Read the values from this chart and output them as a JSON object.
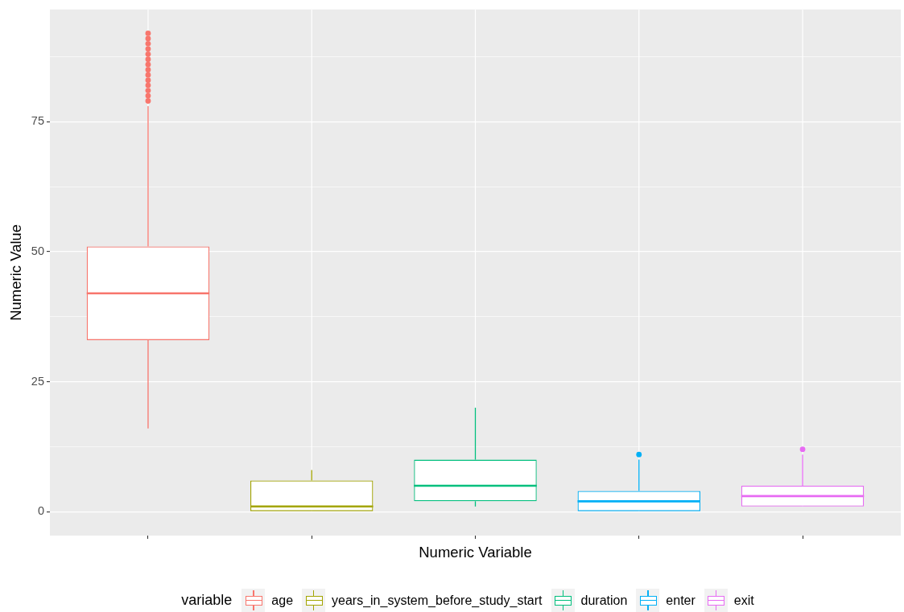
{
  "chart_data": {
    "type": "box",
    "xlabel": "Numeric Variable",
    "ylabel": "Numeric Value",
    "legend_title": "variable",
    "categories": [
      null,
      null,
      null,
      null,
      null
    ],
    "ylim": [
      -4.6,
      96.6
    ],
    "yticks": [
      0,
      {
        "value": 12.5,
        "label": null
      },
      25,
      {
        "value": 37.5,
        "label": null
      },
      50,
      {
        "value": 62.5,
        "label": null
      },
      75,
      {
        "value": 87.5,
        "label": null
      }
    ],
    "grid": true,
    "legend": "bottom",
    "tick_labels": "y",
    "series": [
      {
        "name": "age",
        "color": "#f8766d",
        "boxes": [
          {
            "low": 16,
            "q1": 33,
            "median": 42,
            "q3": 51,
            "high": 78,
            "outliers": [
              79,
              80,
              81,
              82,
              83,
              84,
              85,
              86,
              87,
              88,
              89,
              90,
              91,
              92
            ]
          },
          null,
          null,
          null,
          null
        ]
      },
      {
        "name": "years_in_system_before_study_start",
        "color": "#a3a500",
        "boxes": [
          null,
          {
            "low": 0,
            "q1": 0,
            "median": 1,
            "q3": 6,
            "high": 8
          },
          null,
          null,
          null
        ]
      },
      {
        "name": "duration",
        "color": "#00bf7d",
        "boxes": [
          null,
          null,
          {
            "low": 1,
            "q1": 2,
            "median": 5,
            "q3": 10,
            "high": 20
          },
          null,
          null
        ]
      },
      {
        "name": "enter",
        "color": "#00b0f6",
        "boxes": [
          null,
          null,
          null,
          {
            "low": 0,
            "q1": 0,
            "median": 2,
            "q3": 4,
            "high": 10,
            "outliers": [
              11
            ]
          },
          null
        ]
      },
      {
        "name": "exit",
        "color": "#e76bf3",
        "boxes": [
          null,
          null,
          null,
          null,
          {
            "low": 1,
            "q1": 1,
            "median": 3,
            "q3": 5,
            "high": 11,
            "outliers": [
              12
            ]
          }
        ]
      }
    ]
  }
}
